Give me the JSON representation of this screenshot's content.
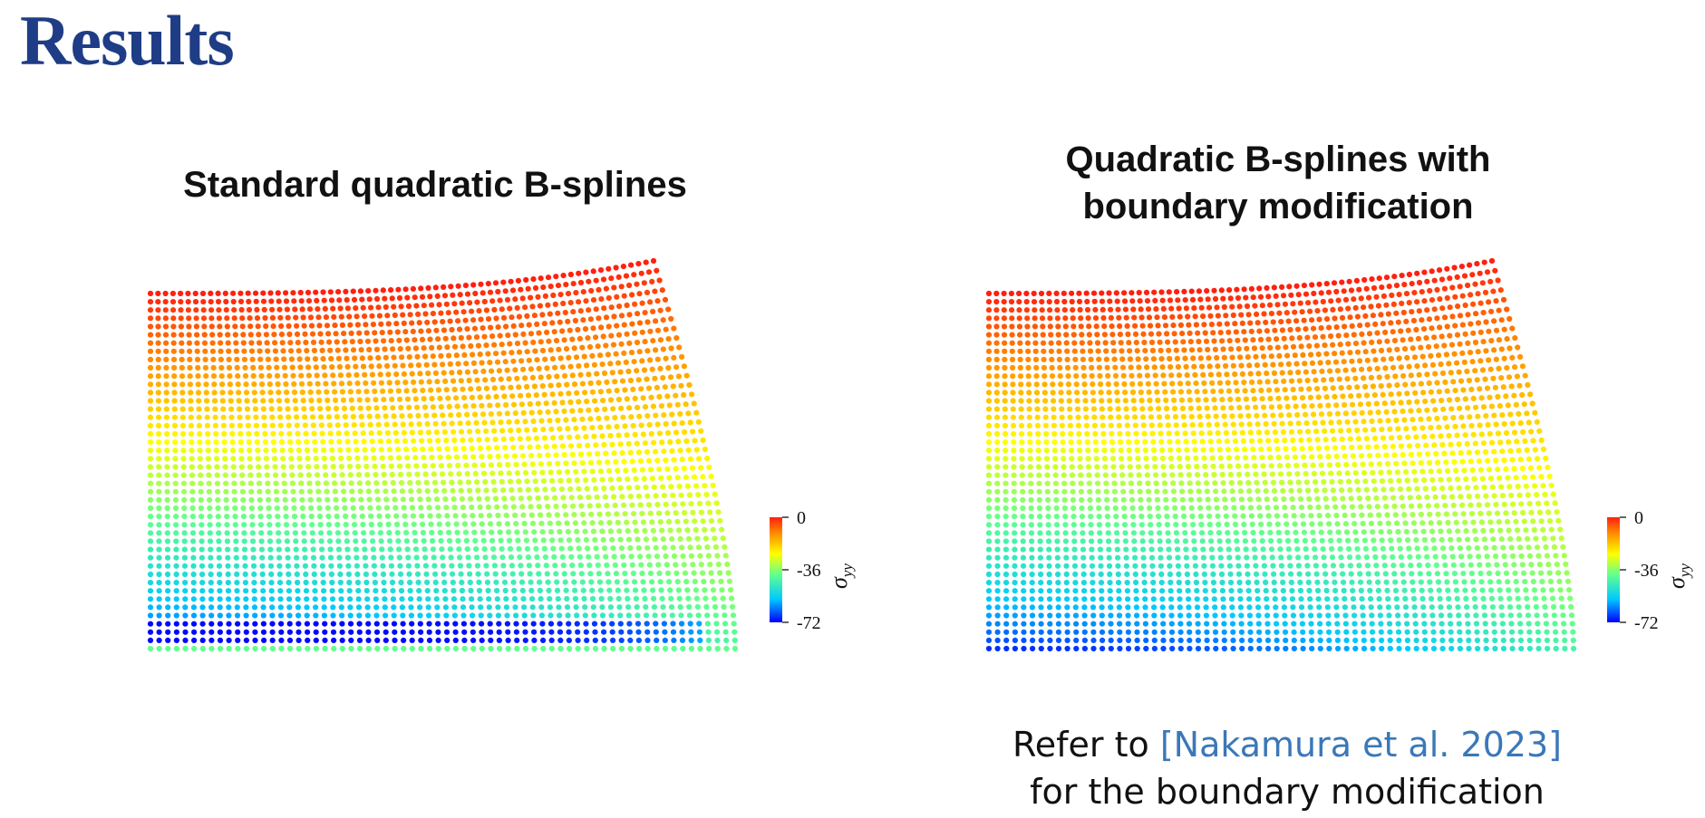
{
  "slide": {
    "title": "Results",
    "footer": {
      "prefix": "Refer to",
      "citation": "[Nakamura et al. 2023]",
      "suffix": "for the boundary modification"
    }
  },
  "panels": [
    {
      "title_lines": [
        "Standard quadratic B-splines"
      ],
      "colorbar": {
        "ticks": [
          "0",
          "-36",
          "-72"
        ],
        "label": "σ",
        "label_sub": "yy"
      },
      "variant": "standard"
    },
    {
      "title_lines": [
        "Quadratic B-splines with",
        "boundary modification"
      ],
      "colorbar": {
        "ticks": [
          "0",
          "-36",
          "-72"
        ],
        "label": "σ",
        "label_sub": "yy"
      },
      "variant": "modified"
    }
  ],
  "colors": {
    "title": "#1f3d86",
    "citation": "#3a78b8",
    "colormap": [
      "#0000ff",
      "#00c8ff",
      "#60ff90",
      "#ffff00",
      "#ff8a00",
      "#ff2010"
    ]
  }
}
